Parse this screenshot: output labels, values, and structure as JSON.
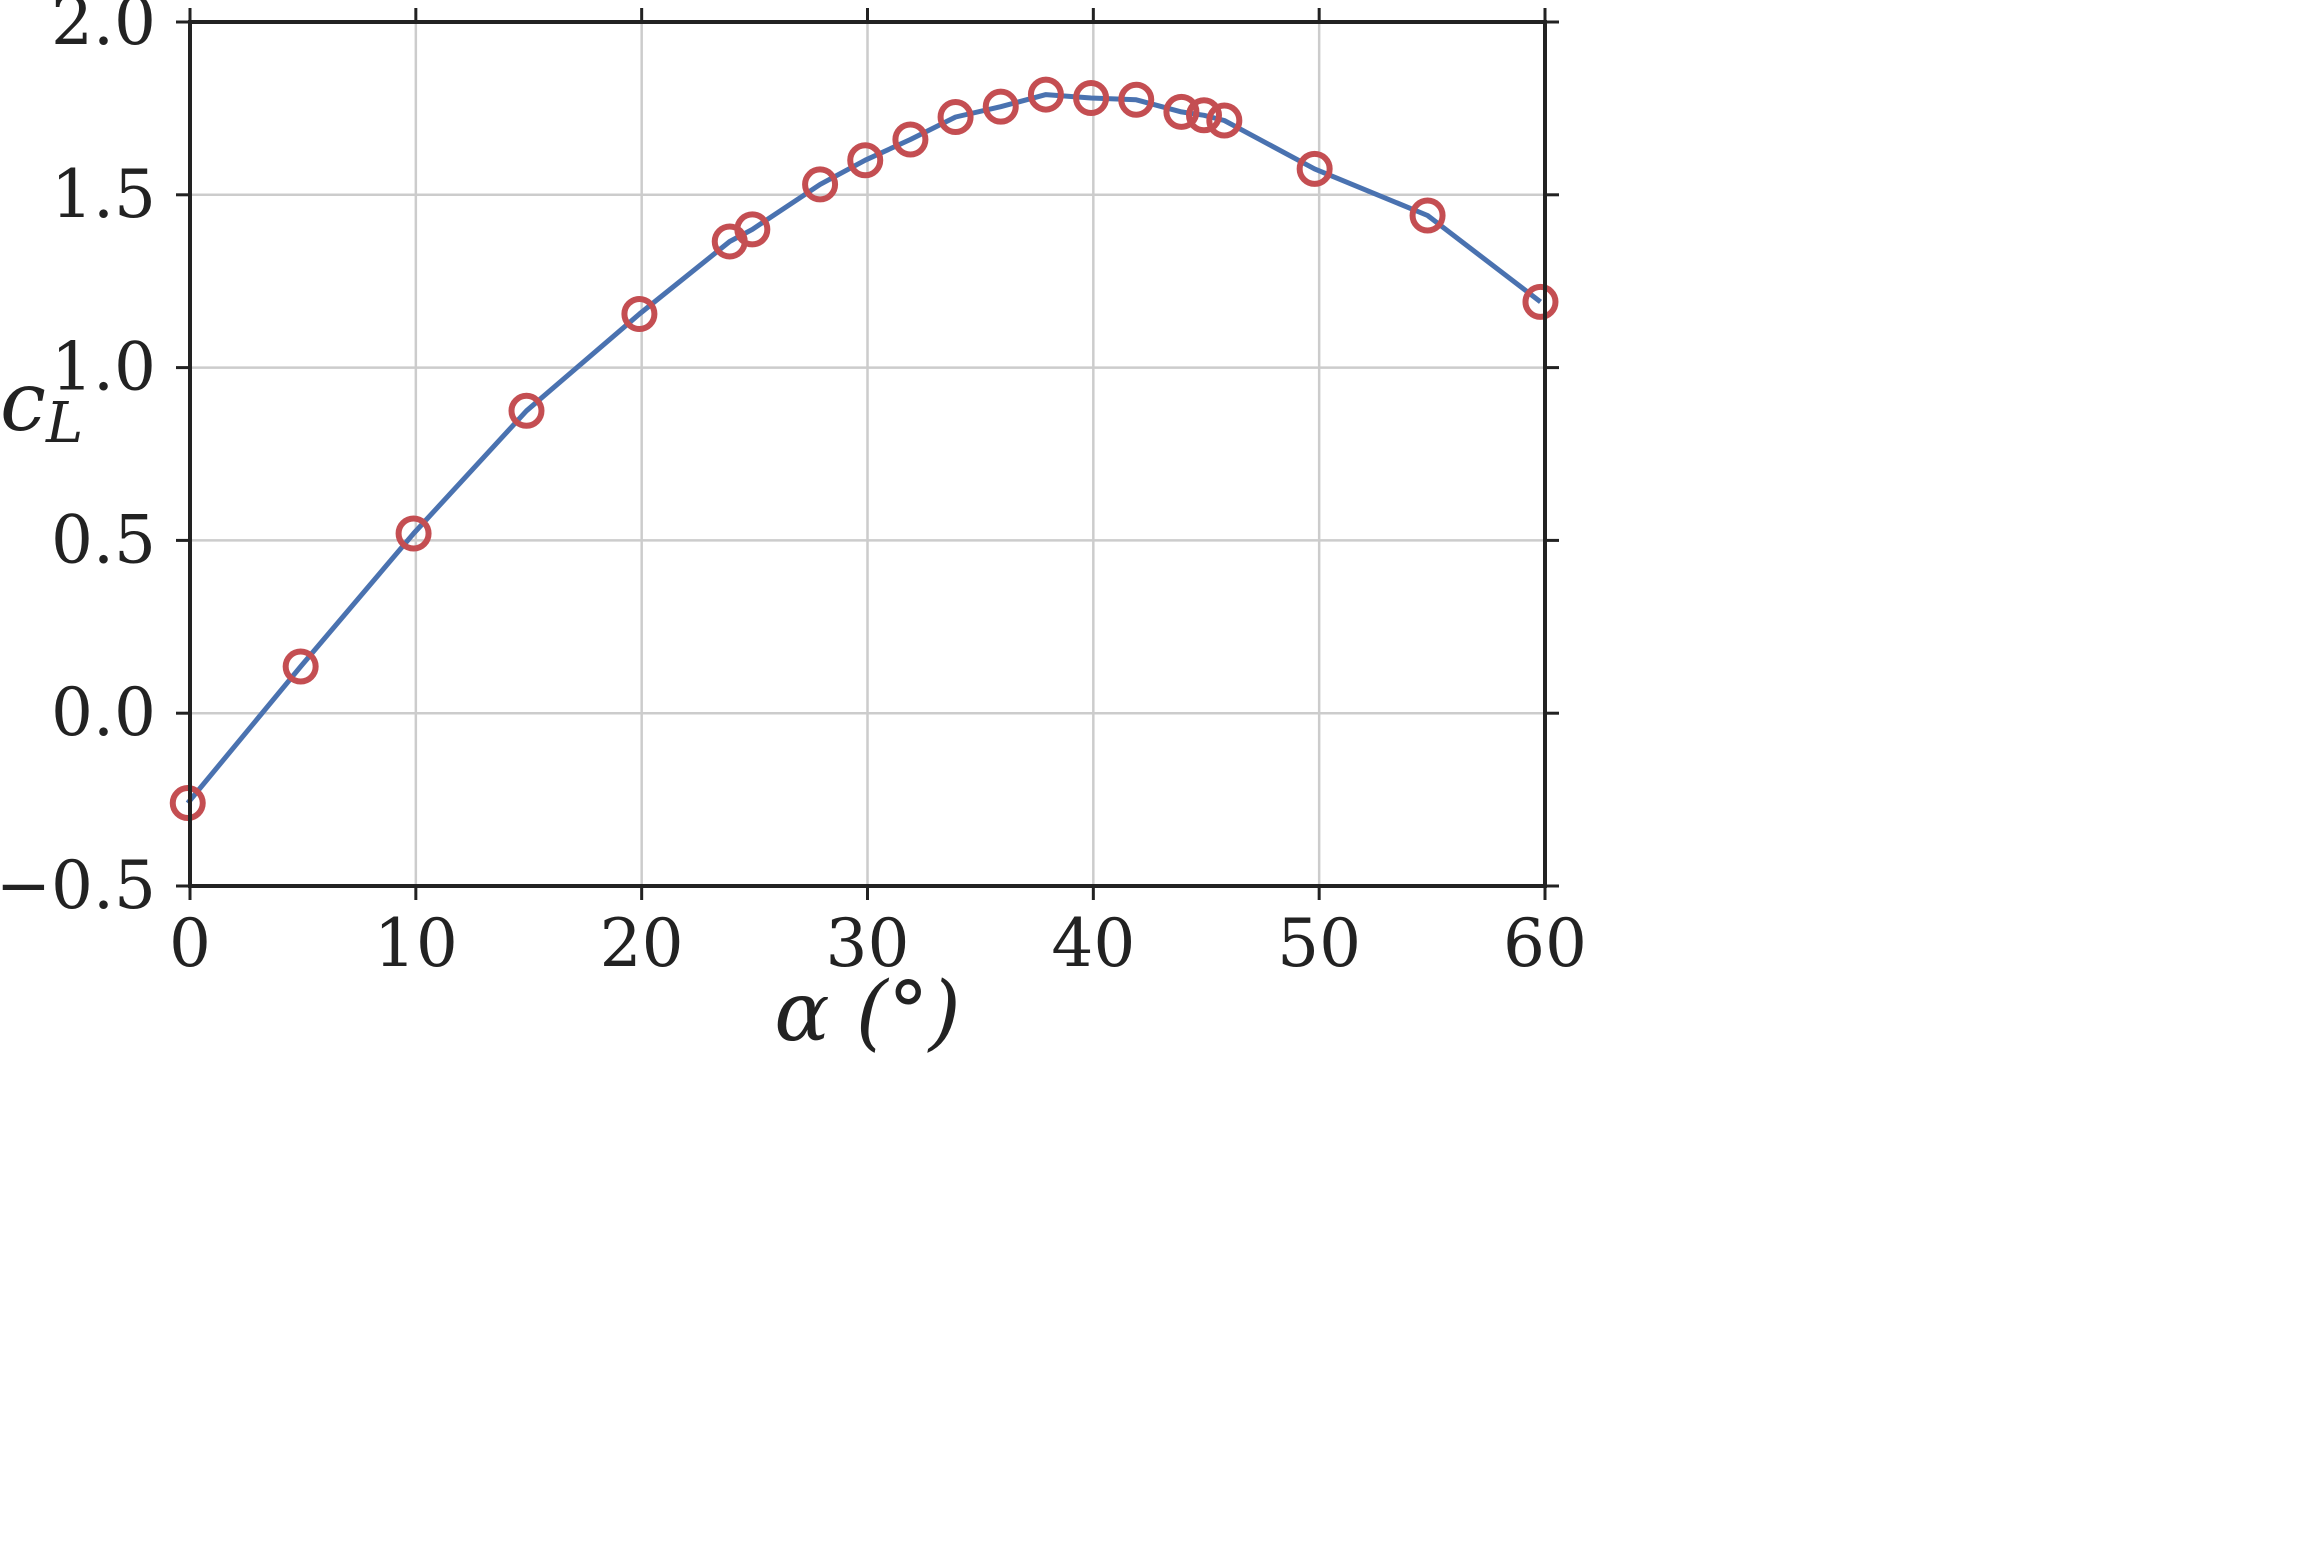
{
  "chart_data": {
    "type": "line",
    "xlabel": "α (°)",
    "ylabel": "c_L",
    "ylabel_main": "c",
    "ylabel_sub": "L",
    "xlim": [
      0,
      60
    ],
    "ylim": [
      -0.5,
      2.0
    ],
    "xticks": [
      0,
      10,
      20,
      30,
      40,
      50,
      60
    ],
    "yticks": [
      -0.5,
      0.0,
      0.5,
      1.0,
      1.5,
      2.0
    ],
    "xtick_labels": [
      "0",
      "10",
      "20",
      "30",
      "40",
      "50",
      "60"
    ],
    "ytick_labels": [
      "−0.5",
      "0.0",
      "0.5",
      "1.0",
      "1.5",
      "2.0"
    ],
    "grid": true,
    "series": [
      {
        "line_color": "#4a72b0",
        "marker_color": "#c44e52",
        "marker": "open-circle",
        "x": [
          -0.1,
          4.9,
          9.9,
          14.9,
          19.9,
          23.9,
          24.9,
          27.9,
          29.9,
          31.9,
          33.9,
          35.9,
          37.9,
          39.9,
          41.9,
          43.9,
          44.9,
          45.8,
          49.8,
          54.8,
          59.8
        ],
        "y": [
          -0.26,
          0.135,
          0.52,
          0.875,
          1.155,
          1.365,
          1.4,
          1.53,
          1.6,
          1.66,
          1.725,
          1.755,
          1.79,
          1.78,
          1.775,
          1.74,
          1.73,
          1.715,
          1.575,
          1.44,
          1.19
        ]
      }
    ]
  }
}
